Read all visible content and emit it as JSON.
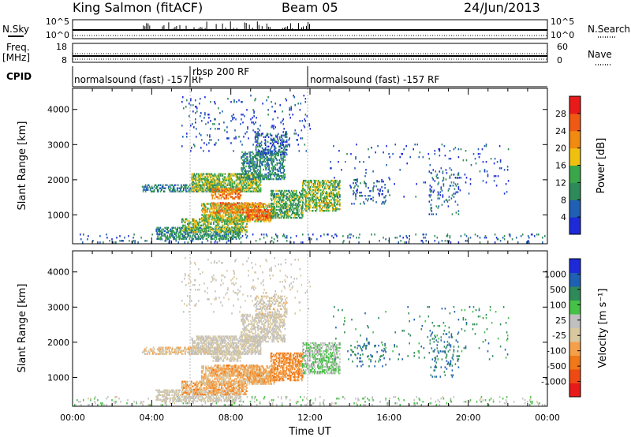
{
  "header": {
    "station": "King Salmon (fitACF)",
    "beam": "Beam 05",
    "date": "24/Jun/2013"
  },
  "strips": {
    "nsky_label": "N.Sky",
    "nsky_ticks": [
      "10^5",
      "10^0"
    ],
    "nsearch_label": "N.Search",
    "nsearch_ticks": [
      "10^5",
      "10^0"
    ],
    "freq_label": "Freq.",
    "freq_unit": "[MHz]",
    "freq_ticks": [
      "18",
      "8"
    ],
    "nave_label": "Nave",
    "nave_ticks": [
      "60",
      "0"
    ],
    "cpid_label": "CPID"
  },
  "cpid": [
    {
      "label": "normalsound (fast) -157 RF",
      "start_hour": 0,
      "end_hour": 6
    },
    {
      "label": "rbsp 200 RF",
      "start_hour": 6,
      "end_hour": 12
    },
    {
      "label": "normalsound (fast) -157 RF",
      "start_hour": 12,
      "end_hour": 24
    }
  ],
  "colors": {
    "power_scale": [
      "#1e2ad8",
      "#1f5fb4",
      "#2e8a58",
      "#3aa64a",
      "#f0c010",
      "#f08a10",
      "#ee5a14",
      "#e81a1a"
    ],
    "velocity_scale": [
      "#e81a1a",
      "#ee4a14",
      "#f07818",
      "#f4a04a",
      "#d8c8a0",
      "#c0c0c0",
      "#46c046",
      "#2e8a58",
      "#1f5fb4",
      "#1e2ad8"
    ]
  },
  "chart_data": [
    {
      "type": "heatmap",
      "name": "power",
      "title": "",
      "xlabel": "",
      "ylabel": "Slant Range [km]",
      "xlim": [
        0,
        24
      ],
      "ylim": [
        180,
        4600
      ],
      "x_ticks": [],
      "y_ticks": [
        "1000",
        "2000",
        "3000",
        "4000"
      ],
      "colorbar_label": "Power [dB]",
      "colorbar_ticks": [
        "4",
        "8",
        "12",
        "16",
        "20",
        "24",
        "28"
      ],
      "colorbar_range": [
        0,
        30
      ],
      "regions": [
        {
          "t0": 0.0,
          "t1": 24.0,
          "r0": 200,
          "r1": 450,
          "density": 0.07,
          "level": 6
        },
        {
          "t0": 4.2,
          "t1": 8.5,
          "r0": 300,
          "r1": 650,
          "density": 0.45,
          "level": 10
        },
        {
          "t0": 5.5,
          "t1": 8.8,
          "r0": 500,
          "r1": 900,
          "density": 0.45,
          "level": 14
        },
        {
          "t0": 6.5,
          "t1": 10.2,
          "r0": 800,
          "r1": 1300,
          "density": 0.5,
          "level": 16
        },
        {
          "t0": 7.0,
          "t1": 9.5,
          "r0": 1050,
          "r1": 1350,
          "density": 0.4,
          "level": 22
        },
        {
          "t0": 8.8,
          "t1": 10.0,
          "r0": 850,
          "r1": 1150,
          "density": 0.5,
          "level": 24
        },
        {
          "t0": 3.5,
          "t1": 7.5,
          "r0": 1650,
          "r1": 1850,
          "density": 0.4,
          "level": 8
        },
        {
          "t0": 6.0,
          "t1": 9.5,
          "r0": 1650,
          "r1": 2150,
          "density": 0.55,
          "level": 14
        },
        {
          "t0": 7.0,
          "t1": 8.5,
          "r0": 1450,
          "r1": 1750,
          "density": 0.45,
          "level": 22
        },
        {
          "t0": 8.5,
          "t1": 10.7,
          "r0": 2000,
          "r1": 2800,
          "density": 0.45,
          "level": 9
        },
        {
          "t0": 9.2,
          "t1": 10.8,
          "r0": 2700,
          "r1": 3300,
          "density": 0.3,
          "level": 6
        },
        {
          "t0": 10.0,
          "t1": 11.6,
          "r0": 900,
          "r1": 1700,
          "density": 0.5,
          "level": 12
        },
        {
          "t0": 11.6,
          "t1": 13.5,
          "r0": 1100,
          "r1": 2000,
          "density": 0.45,
          "level": 14
        },
        {
          "t0": 14.0,
          "t1": 15.8,
          "r0": 1300,
          "r1": 2000,
          "density": 0.1,
          "level": 6
        },
        {
          "t0": 18.0,
          "t1": 19.5,
          "r0": 1000,
          "r1": 2300,
          "density": 0.08,
          "level": 6
        },
        {
          "t0": 5.5,
          "t1": 12.0,
          "r0": 2800,
          "r1": 4400,
          "density": 0.03,
          "level": 4
        },
        {
          "t0": 13.0,
          "t1": 22.0,
          "r0": 1500,
          "r1": 3000,
          "density": 0.02,
          "level": 4
        }
      ]
    },
    {
      "type": "heatmap",
      "name": "velocity",
      "title": "",
      "xlabel": "Time UT",
      "ylabel": "Slant Range [km]",
      "xlim": [
        0,
        24
      ],
      "ylim": [
        180,
        4600
      ],
      "x_ticks": [
        "00:00",
        "04:00",
        "08:00",
        "12:00",
        "16:00",
        "20:00",
        "00:00"
      ],
      "y_ticks": [
        "1000",
        "2000",
        "3000",
        "4000"
      ],
      "colorbar_label": "Velocity [m s⁻¹]",
      "colorbar_ticks": [
        "-1000",
        "-500",
        "-100",
        "-25",
        "25",
        "100",
        "500",
        "1000"
      ],
      "colorbar_range": [
        -1000,
        1000
      ],
      "regions": [
        {
          "t0": 0.0,
          "t1": 24.0,
          "r0": 200,
          "r1": 450,
          "density": 0.07,
          "level": 150
        },
        {
          "t0": 4.2,
          "t1": 8.5,
          "r0": 300,
          "r1": 650,
          "density": 0.45,
          "level": 0
        },
        {
          "t0": 5.5,
          "t1": 8.8,
          "r0": 500,
          "r1": 900,
          "density": 0.45,
          "level": -300
        },
        {
          "t0": 6.5,
          "t1": 10.2,
          "r0": 800,
          "r1": 1300,
          "density": 0.5,
          "level": -200
        },
        {
          "t0": 7.0,
          "t1": 9.5,
          "r0": 1050,
          "r1": 1350,
          "density": 0.4,
          "level": -300
        },
        {
          "t0": 8.8,
          "t1": 10.0,
          "r0": 850,
          "r1": 1150,
          "density": 0.5,
          "level": -300
        },
        {
          "t0": 3.5,
          "t1": 7.5,
          "r0": 1650,
          "r1": 1850,
          "density": 0.4,
          "level": -150
        },
        {
          "t0": 6.0,
          "t1": 9.5,
          "r0": 1650,
          "r1": 2150,
          "density": 0.55,
          "level": 0
        },
        {
          "t0": 7.0,
          "t1": 8.5,
          "r0": 1450,
          "r1": 1750,
          "density": 0.45,
          "level": 0
        },
        {
          "t0": 8.5,
          "t1": 10.7,
          "r0": 2000,
          "r1": 2800,
          "density": 0.45,
          "level": 0
        },
        {
          "t0": 9.2,
          "t1": 10.8,
          "r0": 2700,
          "r1": 3300,
          "density": 0.3,
          "level": -50
        },
        {
          "t0": 10.0,
          "t1": 11.6,
          "r0": 900,
          "r1": 1700,
          "density": 0.5,
          "level": -400
        },
        {
          "t0": 11.6,
          "t1": 13.5,
          "r0": 1100,
          "r1": 2000,
          "density": 0.45,
          "level": 200
        },
        {
          "t0": 14.0,
          "t1": 15.8,
          "r0": 1300,
          "r1": 2000,
          "density": 0.1,
          "level": 600
        },
        {
          "t0": 18.0,
          "t1": 19.5,
          "r0": 1000,
          "r1": 2300,
          "density": 0.08,
          "level": 600
        },
        {
          "t0": 5.5,
          "t1": 12.0,
          "r0": 2800,
          "r1": 4400,
          "density": 0.03,
          "level": 0
        },
        {
          "t0": 13.0,
          "t1": 22.0,
          "r0": 1500,
          "r1": 3000,
          "density": 0.02,
          "level": 500
        }
      ]
    }
  ]
}
